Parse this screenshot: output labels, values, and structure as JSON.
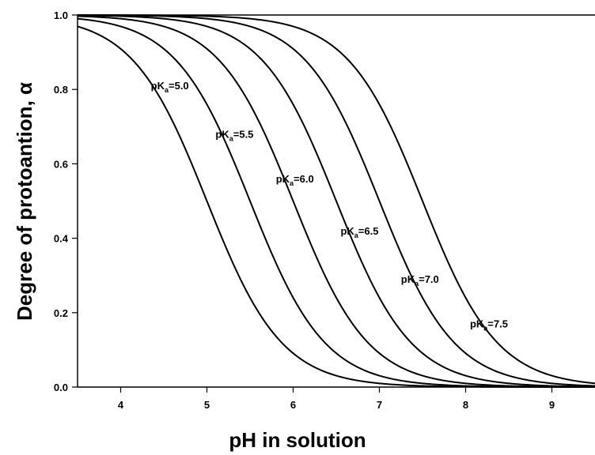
{
  "chart_data": {
    "type": "line",
    "xlabel": "pH in solution",
    "ylabel": "Degree of protoantion, α",
    "xlim": [
      3.5,
      9.5
    ],
    "ylim": [
      0.0,
      1.0
    ],
    "x_ticks": [
      4,
      5,
      6,
      7,
      8,
      9
    ],
    "x_tick_labels": [
      "4",
      "5",
      "6",
      "7",
      "8",
      "9"
    ],
    "y_ticks": [
      0.0,
      0.2,
      0.4,
      0.6,
      0.8,
      1.0
    ],
    "y_tick_labels": [
      "0.0",
      "0.2",
      "0.4",
      "0.6",
      "0.8",
      "1.0"
    ],
    "grid": false,
    "function": "alpha = 1 / (1 + 10^(pH - pKa))",
    "series": [
      {
        "pKa": 5.0,
        "label_main": "pK",
        "label_sub": "a",
        "label_value": "=5.0",
        "label_at": [
          4.35,
          0.8
        ]
      },
      {
        "pKa": 5.5,
        "label_main": "pK",
        "label_sub": "a",
        "label_value": "=5.5",
        "label_at": [
          5.1,
          0.67
        ]
      },
      {
        "pKa": 6.0,
        "label_main": "pK",
        "label_sub": "a",
        "label_value": "=6.0",
        "label_at": [
          5.8,
          0.55
        ]
      },
      {
        "pKa": 6.5,
        "label_main": "pK",
        "label_sub": "a",
        "label_value": "=6.5",
        "label_at": [
          6.55,
          0.41
        ]
      },
      {
        "pKa": 7.0,
        "label_main": "pK",
        "label_sub": "a",
        "label_value": "=7.0",
        "label_at": [
          7.25,
          0.28
        ]
      },
      {
        "pKa": 7.5,
        "label_main": "pK",
        "label_sub": "a",
        "label_value": "=7.5",
        "label_at": [
          8.05,
          0.16
        ]
      }
    ]
  }
}
